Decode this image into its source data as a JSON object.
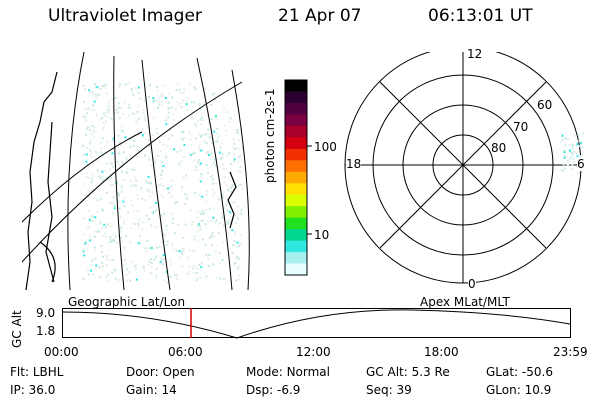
{
  "header": {
    "title": "Ultraviolet Imager",
    "date": "21 Apr 07",
    "time": "06:13:01 UT"
  },
  "colorbar": {
    "unit_label": "photon cm-2s-1",
    "ticks": [
      "100",
      "10"
    ],
    "colors": [
      "#000000",
      "#2a0030",
      "#500040",
      "#7a0040",
      "#a8002a",
      "#d40010",
      "#f03000",
      "#ff7000",
      "#ffa800",
      "#ffe000",
      "#d8ff00",
      "#80f000",
      "#20e020",
      "#00d890",
      "#30e8e0",
      "#a8f0f0",
      "#e8ffff"
    ]
  },
  "polar": {
    "labels": {
      "top": "12",
      "bottom": "0",
      "left": "18",
      "right": "6"
    },
    "lat_labels": [
      "60",
      "70",
      "80"
    ]
  },
  "timeline": {
    "left_label": "Geographic Lat/Lon",
    "right_label": "Apex MLat/MLT",
    "axis_title": "GC Alt",
    "y_ticks": [
      "9.0",
      "1.8"
    ],
    "x_ticks": [
      "00:00",
      "06:00",
      "12:00",
      "18:00",
      "23:59"
    ],
    "marker_color": "#d00000"
  },
  "info": {
    "row1": [
      {
        "k": "Flt:",
        "v": "LBHL"
      },
      {
        "k": "Door:",
        "v": "Open"
      },
      {
        "k": "Mode:",
        "v": "Normal"
      },
      {
        "k": "GC Alt:",
        "v": "5.3 Re"
      },
      {
        "k": "GLat:",
        "v": "-50.6"
      }
    ],
    "row2": [
      {
        "k": "IP:",
        "v": "36.0"
      },
      {
        "k": "Gain:",
        "v": "14"
      },
      {
        "k": "Dsp:",
        "v": "-6.9"
      },
      {
        "k": "Seq:",
        "v": "39"
      },
      {
        "k": "GLon:",
        "v": "10.9"
      }
    ]
  }
}
